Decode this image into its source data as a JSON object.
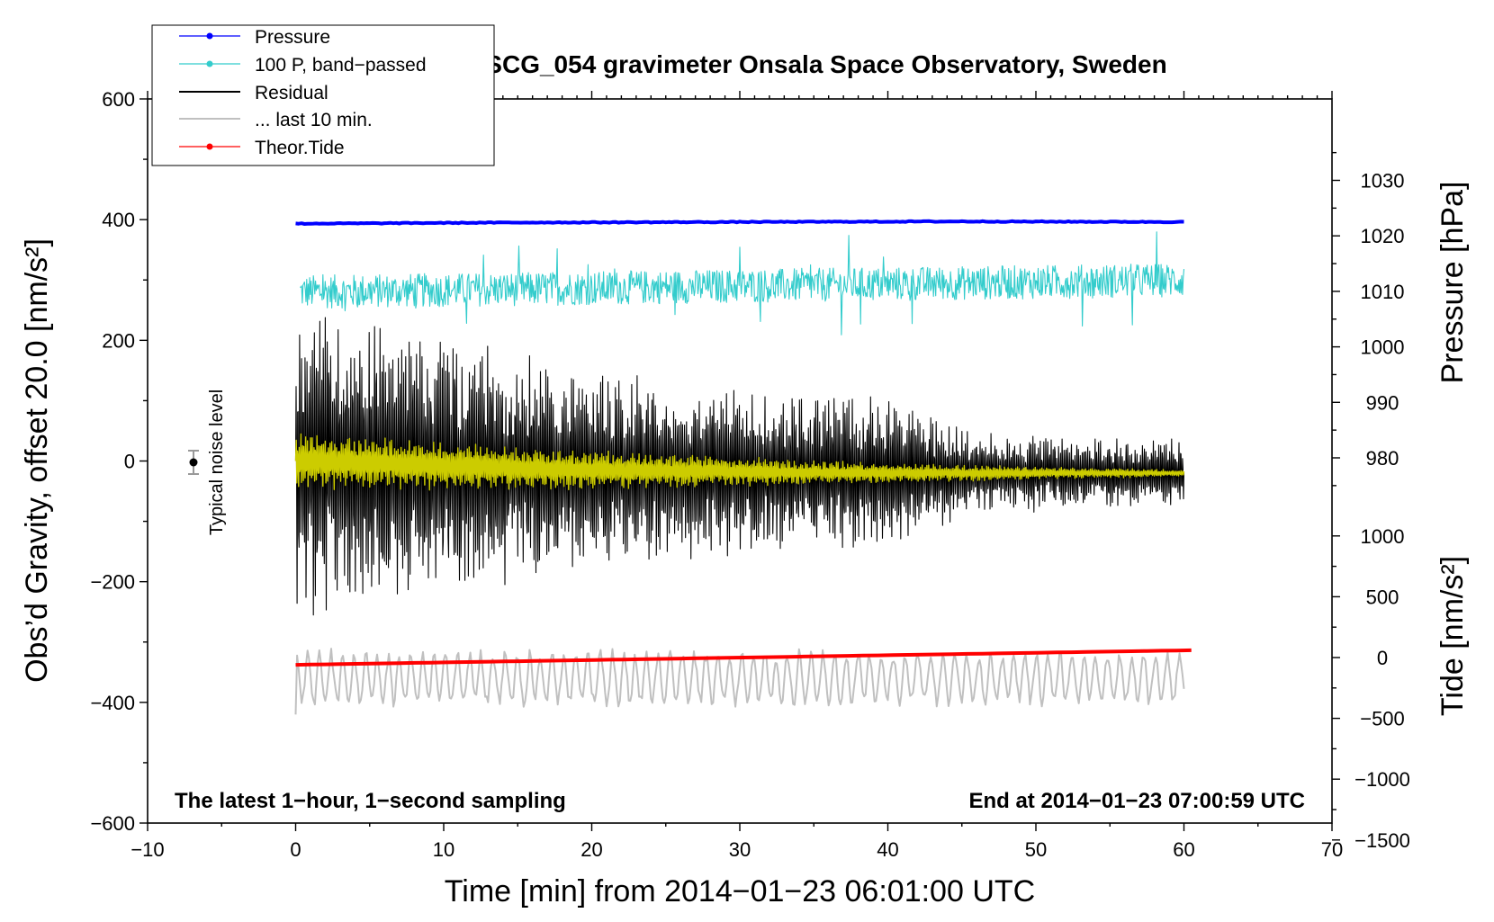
{
  "chart_data": {
    "type": "line",
    "title": "SCG_054 gravimeter Onsala Space Observatory, Sweden",
    "xlabel": "Time [min] from 2014−01−23 06:01:00 UTC",
    "ylabel": "Obs’d Gravity, offset 20.0 [nm/s²]",
    "xlim": [
      -10,
      70
    ],
    "ylim": [
      -600,
      600
    ],
    "x_ticks": [
      {
        "value": -10,
        "label": "−10"
      },
      {
        "value": 0,
        "label": "0"
      },
      {
        "value": 10,
        "label": "10"
      },
      {
        "value": 20,
        "label": "20"
      },
      {
        "value": 30,
        "label": "30"
      },
      {
        "value": 40,
        "label": "40"
      },
      {
        "value": 50,
        "label": "50"
      },
      {
        "value": 60,
        "label": "60"
      },
      {
        "value": 70,
        "label": "70"
      }
    ],
    "y_ticks": [
      {
        "value": 600,
        "label": "600"
      },
      {
        "value": 400,
        "label": "400"
      },
      {
        "value": 200,
        "label": "200"
      },
      {
        "value": 0,
        "label": "0"
      },
      {
        "value": -200,
        "label": "−200"
      },
      {
        "value": -400,
        "label": "−400"
      },
      {
        "value": -600,
        "label": "−600"
      }
    ],
    "pressure_axis": {
      "label": "Pressure [hPa]",
      "ticks": [
        {
          "value": 1030,
          "label": "1030"
        },
        {
          "value": 1020,
          "label": "1020"
        },
        {
          "value": 1010,
          "label": "1010"
        },
        {
          "value": 1000,
          "label": "1000"
        },
        {
          "value": 990,
          "label": "990"
        },
        {
          "value": 980,
          "label": "980"
        }
      ]
    },
    "tide_axis": {
      "label": "Tide [nm/s²]",
      "ticks": [
        {
          "value": 1000,
          "label": "1000"
        },
        {
          "value": 500,
          "label": "500"
        },
        {
          "value": 0,
          "label": "0"
        },
        {
          "value": -500,
          "label": "−500"
        },
        {
          "value": -1000,
          "label": "−1000"
        },
        {
          "value": -1500,
          "label": "−1500"
        }
      ]
    },
    "series": [
      {
        "key": "pressure",
        "name": "Pressure",
        "color": "#0000ff",
        "axis": "pressure",
        "x": [
          0,
          15,
          30,
          45,
          60
        ],
        "values": [
          1022.2,
          1022.4,
          1022.5,
          1022.6,
          1022.5
        ]
      },
      {
        "key": "bandpass",
        "name": "100 P, band−passed",
        "color": "#33cccc",
        "axis": "gravity",
        "x": [
          0,
          60
        ],
        "values": [
          280,
          300
        ],
        "noise_amplitude": 40
      },
      {
        "key": "residual",
        "name": "Residual",
        "color": "#000000",
        "axis": "gravity",
        "x": [
          0,
          10,
          20,
          30,
          40,
          45,
          50,
          60
        ],
        "values": [
          0,
          -10,
          -15,
          -18,
          -20,
          -20,
          -20,
          -20
        ],
        "amplitude_envelope": [
          200,
          170,
          130,
          110,
          100,
          60,
          50,
          45
        ]
      },
      {
        "key": "last10",
        "name": "... last 10 min.",
        "color": "#c0c0c0",
        "axis": "gravity",
        "x": [
          0,
          60
        ],
        "values": [
          -360,
          -360
        ],
        "amplitude": 45
      },
      {
        "key": "tide",
        "name": "Theor.Tide",
        "color": "#ff0000",
        "axis": "tide",
        "x": [
          0,
          60.5
        ],
        "values": [
          -60,
          60
        ]
      },
      {
        "key": "filtered",
        "name": "",
        "color": "#cccc00",
        "axis": "gravity",
        "x": [
          0,
          20,
          40,
          60
        ],
        "values": [
          0,
          -15,
          -20,
          -20
        ],
        "amplitude_envelope": [
          45,
          30,
          15,
          5
        ]
      }
    ],
    "noise_marker": {
      "x": -7,
      "y": 0,
      "error": 20,
      "label": "Typical noise level"
    },
    "note_left": "The latest 1−hour, 1−second sampling",
    "note_right": "End at 2014−01−23 07:00:59 UTC",
    "legend_position": "top-left"
  }
}
